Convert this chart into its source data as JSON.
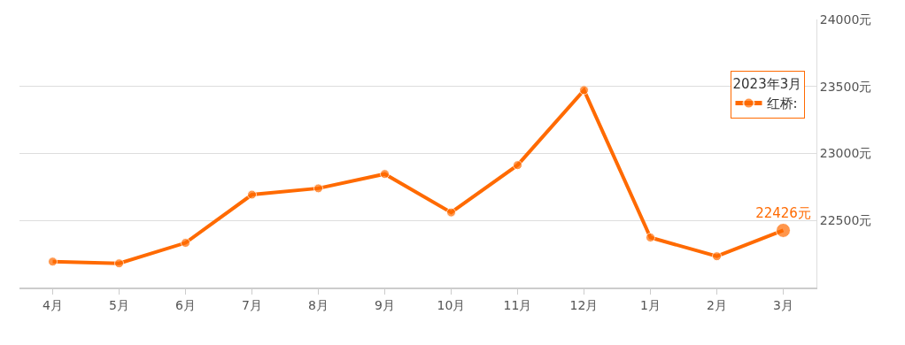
{
  "chart_data": {
    "type": "line",
    "categories": [
      "4月",
      "5月",
      "6月",
      "7月",
      "8月",
      "9月",
      "10月",
      "11月",
      "12月",
      "1月",
      "2月",
      "3月"
    ],
    "series": [
      {
        "name": "红桥:",
        "color": "#ff6a00",
        "values": [
          22193,
          22180,
          22333,
          22693,
          22740,
          22847,
          22560,
          22913,
          23473,
          22373,
          22233,
          22426
        ],
        "value_labels": [
          null,
          null,
          null,
          null,
          null,
          null,
          null,
          null,
          null,
          null,
          null,
          "22426元"
        ]
      }
    ],
    "ylim": [
      22000,
      24000
    ],
    "yticks": [
      {
        "value": 22500,
        "label": "22500元"
      },
      {
        "value": 23000,
        "label": "23000元"
      },
      {
        "value": 23500,
        "label": "23500元"
      },
      {
        "value": 24000,
        "label": "24000元"
      }
    ],
    "legend_title": "2023年3月",
    "grid": "y",
    "legend": "right",
    "marker": "circle",
    "line_style": "solid"
  }
}
